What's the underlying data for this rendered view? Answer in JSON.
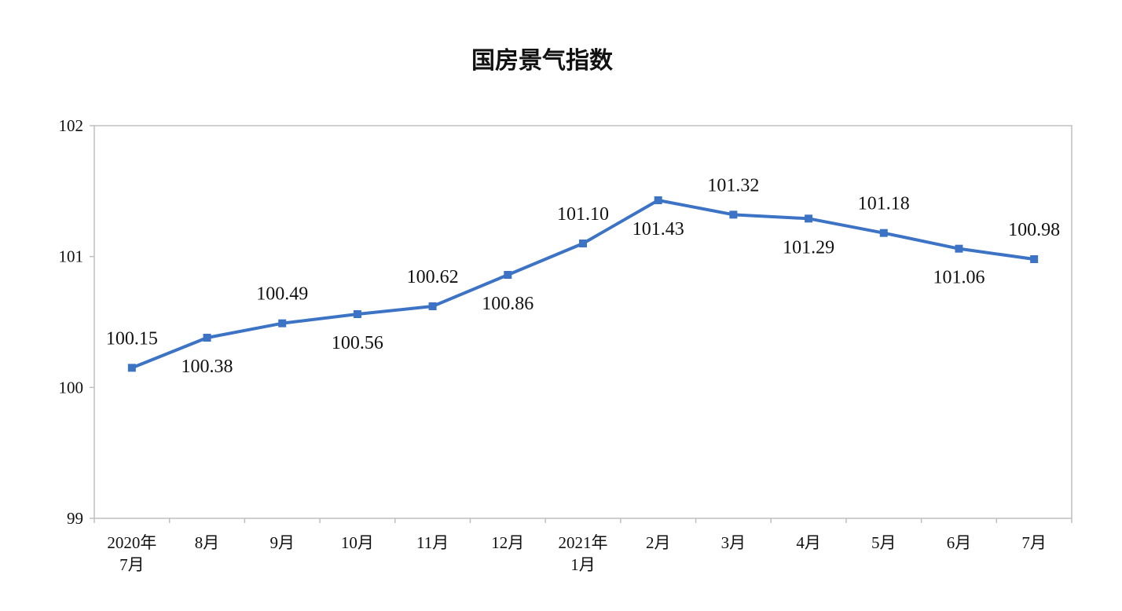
{
  "chart_data": {
    "type": "line",
    "title": "国房景气指数",
    "categories": [
      [
        "2020年",
        "7月"
      ],
      [
        "8月"
      ],
      [
        "9月"
      ],
      [
        "10月"
      ],
      [
        "11月"
      ],
      [
        "12月"
      ],
      [
        "2021年",
        "1月"
      ],
      [
        "2月"
      ],
      [
        "3月"
      ],
      [
        "4月"
      ],
      [
        "5月"
      ],
      [
        "6月"
      ],
      [
        "7月"
      ]
    ],
    "series": [
      {
        "values": [
          100.15,
          100.38,
          100.49,
          100.56,
          100.62,
          100.86,
          101.1,
          101.43,
          101.32,
          101.29,
          101.18,
          101.06,
          100.98
        ],
        "data_labels": [
          "100.15",
          "100.38",
          "100.49",
          "100.56",
          "100.62",
          "100.86",
          "101.10",
          "101.43",
          "101.32",
          "101.29",
          "101.18",
          "101.06",
          "100.98"
        ],
        "label_positions": [
          "above",
          "below",
          "above",
          "below",
          "above",
          "below",
          "above",
          "below",
          "above",
          "below",
          "above",
          "below",
          "above"
        ],
        "color": "#3c73c4"
      }
    ],
    "ylim": [
      99,
      102
    ],
    "yticks": [
      "99",
      "100",
      "101",
      "102"
    ],
    "xlabel": "",
    "ylabel": "",
    "grid": false,
    "legend": "none"
  }
}
